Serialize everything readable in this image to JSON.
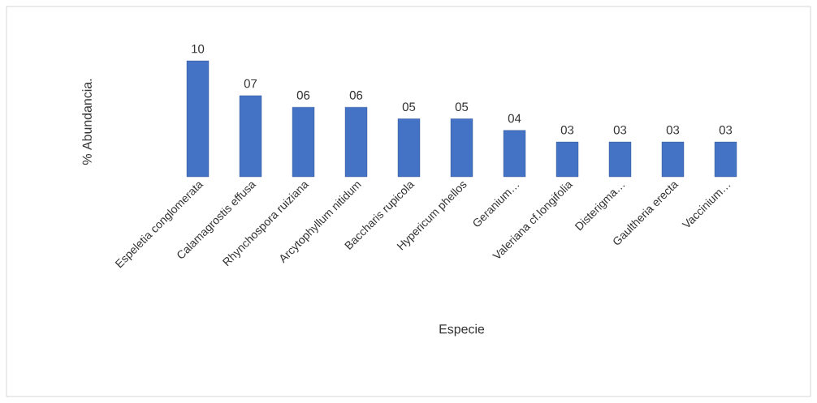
{
  "chart_data": {
    "type": "bar",
    "xlabel": "Especie",
    "ylabel": "% Abundancia.",
    "categories": [
      "Espeletia conglomerata",
      "Calamagrostis effusa",
      "Rhynchospora ruiziana",
      "Arcytophyllum nitidum",
      "Baccharis rupicola",
      "Hypericum phellos",
      "Geranium…",
      "Valeriana cf.longifolia",
      "Disterigma…",
      "Gaultheria erecta",
      "Vaccinium…"
    ],
    "values": [
      10,
      7,
      6,
      6,
      5,
      5,
      4,
      3,
      3,
      3,
      3
    ],
    "value_labels": [
      "10",
      "07",
      "06",
      "06",
      "05",
      "05",
      "04",
      "03",
      "03",
      "03",
      "03"
    ],
    "color": "#4472c4"
  }
}
